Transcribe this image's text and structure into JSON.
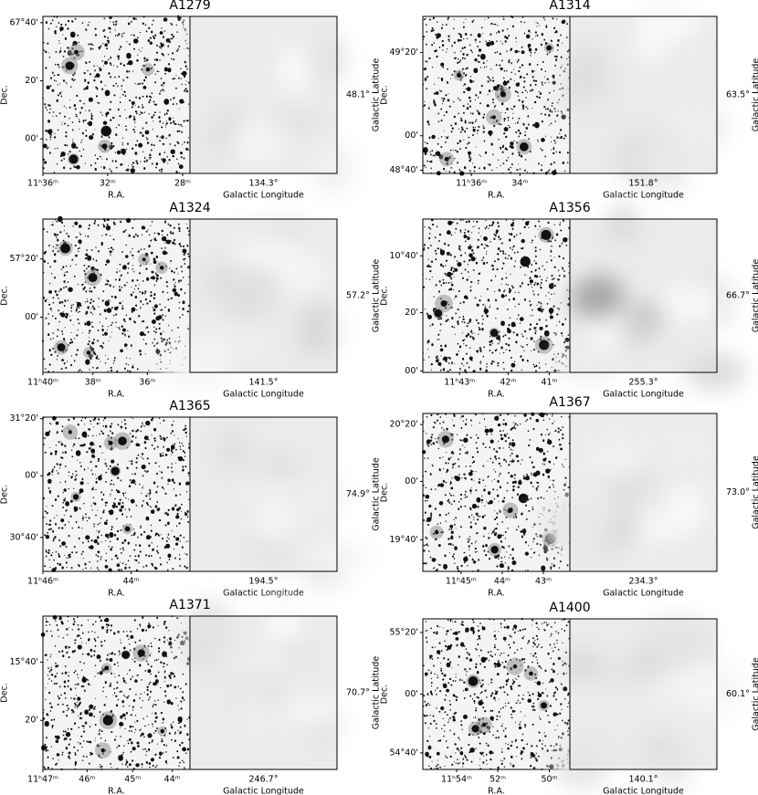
{
  "labels": {
    "ra": "R.A.",
    "dec": "Dec.",
    "lon": "Galactic Longitude",
    "lat": "Galactic Latitude"
  },
  "panels": [
    {
      "title": "A1279",
      "ra_ticks": [
        "11ʰ36ᵐ",
        "32ᵐ",
        "28ᵐ"
      ],
      "dec_ticks": [
        "67°40'",
        "20'",
        "00'"
      ],
      "gal_lon": "134.3°",
      "gal_lat": "48.1°"
    },
    {
      "title": "A1314",
      "ra_ticks": [
        "11ʰ36ᵐ",
        "34ᵐ"
      ],
      "dec_ticks": [
        "49°20'",
        "00'",
        "48°40'"
      ],
      "gal_lon": "151.8°",
      "gal_lat": "63.5°"
    },
    {
      "title": "A1324",
      "ra_ticks": [
        "11ʰ40ᵐ",
        "38ᵐ",
        "36ᵐ"
      ],
      "dec_ticks": [
        "57°20'",
        "00'"
      ],
      "gal_lon": "141.5°",
      "gal_lat": "57.2°"
    },
    {
      "title": "A1356",
      "ra_ticks": [
        "11ʰ43ᵐ",
        "42ᵐ",
        "41ᵐ"
      ],
      "dec_ticks": [
        "10°40'",
        "20'",
        "00'"
      ],
      "gal_lon": "255.3°",
      "gal_lat": "66.7°"
    },
    {
      "title": "A1365",
      "ra_ticks": [
        "11ʰ46ᵐ",
        "44ᵐ"
      ],
      "dec_ticks": [
        "31°20'",
        "00'",
        "30°40'"
      ],
      "gal_lon": "194.5°",
      "gal_lat": "74.9°"
    },
    {
      "title": "A1367",
      "ra_ticks": [
        "11ʰ45ᵐ",
        "44ᵐ",
        "43ᵐ"
      ],
      "dec_ticks": [
        "20°20'",
        "00'",
        "19°40'"
      ],
      "gal_lon": "234.3°",
      "gal_lat": "73.0°"
    },
    {
      "title": "A1371",
      "ra_ticks": [
        "11ʰ47ᵐ",
        "46ᵐ",
        "45ᵐ",
        "44ᵐ"
      ],
      "dec_ticks": [
        "15°40'",
        "20'"
      ],
      "gal_lon": "246.7°",
      "gal_lat": "70.7°"
    },
    {
      "title": "A1400",
      "ra_ticks": [
        "11ʰ54ᵐ",
        "52ᵐ",
        "50ᵐ"
      ],
      "dec_ticks": [
        "55°20'",
        "00'",
        "54°40'"
      ],
      "gal_lon": "140.1°",
      "gal_lat": "60.1°"
    }
  ]
}
